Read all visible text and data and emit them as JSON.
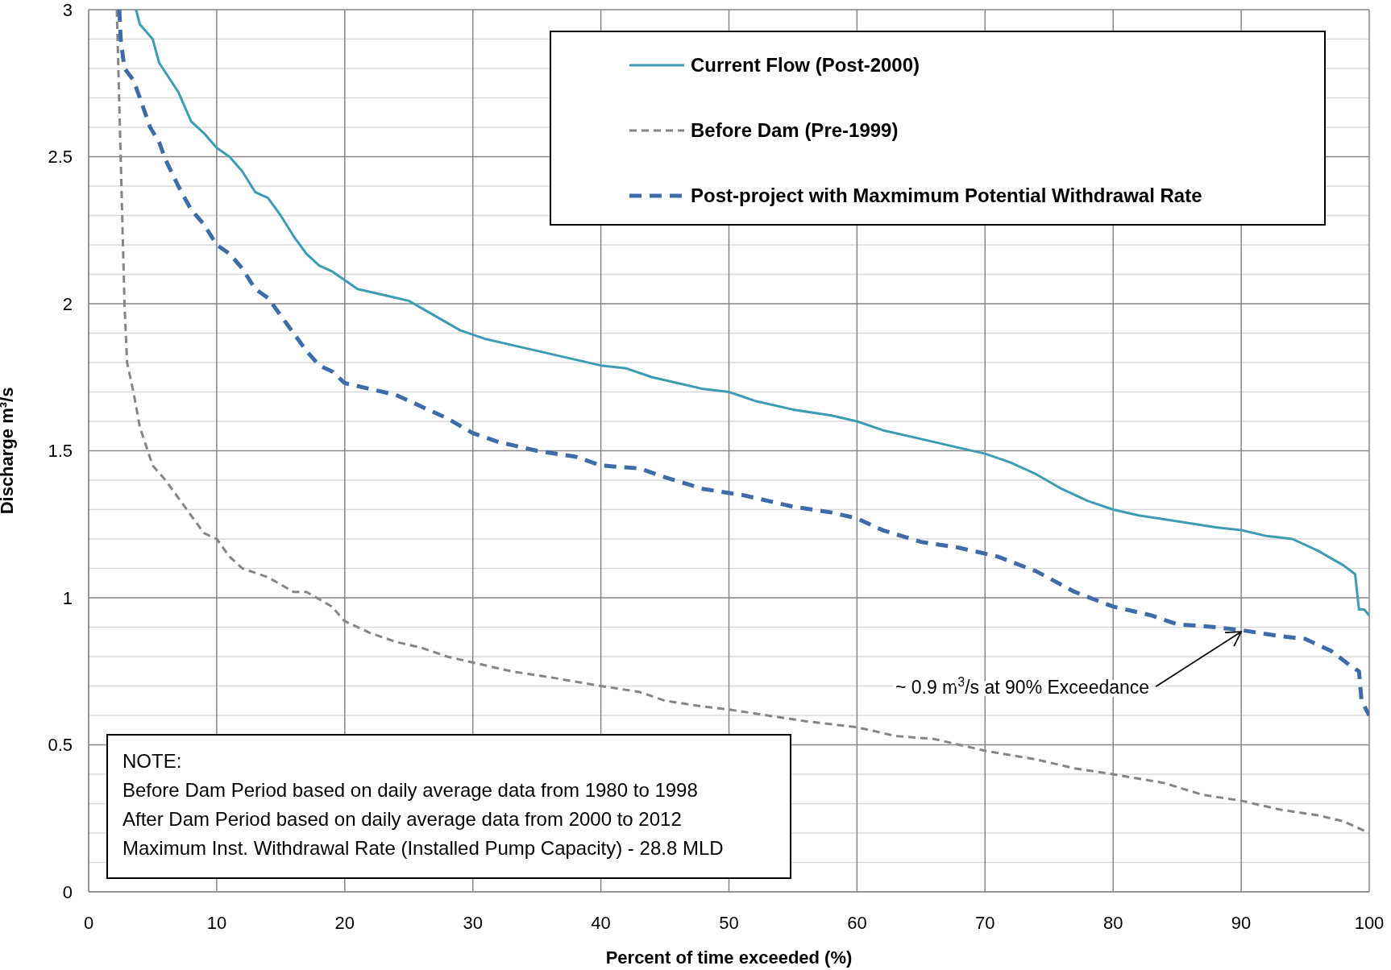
{
  "chart_data": {
    "type": "line",
    "xlabel": "Percent of time exceeded (%)",
    "ylabel": "Discharge m³/s",
    "xlim": [
      0,
      100
    ],
    "xticks": [
      0,
      10,
      20,
      30,
      40,
      50,
      60,
      70,
      80,
      90,
      100
    ],
    "ylim": [
      0,
      3
    ],
    "yticks": [
      0,
      {
        "value": 0.1,
        "label": null
      },
      {
        "value": 0.2,
        "label": null
      },
      {
        "value": 0.3,
        "label": null
      },
      {
        "value": 0.4,
        "label": null
      },
      0.5,
      {
        "value": 0.6,
        "label": null
      },
      {
        "value": 0.7,
        "label": null
      },
      {
        "value": 0.8,
        "label": null
      },
      {
        "value": 0.9,
        "label": null
      },
      1,
      {
        "value": 1.1,
        "label": null
      },
      {
        "value": 1.2,
        "label": null
      },
      {
        "value": 1.3,
        "label": null
      },
      {
        "value": 1.4,
        "label": null
      },
      1.5,
      {
        "value": 1.6,
        "label": null
      },
      {
        "value": 1.7,
        "label": null
      },
      {
        "value": 1.8,
        "label": null
      },
      {
        "value": 1.9,
        "label": null
      },
      2,
      {
        "value": 2.1,
        "label": null
      },
      {
        "value": 2.2,
        "label": null
      },
      {
        "value": 2.3,
        "label": null
      },
      {
        "value": 2.4,
        "label": null
      },
      2.5,
      {
        "value": 2.6,
        "label": null
      },
      {
        "value": 2.7,
        "label": null
      },
      {
        "value": 2.8,
        "label": null
      },
      {
        "value": 2.9,
        "label": null
      },
      3
    ],
    "grid": true,
    "legend": "top right",
    "marker": "none",
    "series": [
      {
        "name": "Current Flow (Post-2000)",
        "color": "#3b9cb4",
        "line_style": "solid",
        "x": [
          3.7,
          4,
          5,
          5.5,
          7,
          8,
          9,
          10,
          11,
          12,
          13,
          14,
          15,
          16,
          17,
          18,
          19,
          20,
          21,
          23,
          25,
          27,
          29,
          31,
          33,
          35,
          38,
          40,
          42,
          44,
          46,
          48,
          50,
          52,
          55,
          58,
          60,
          62,
          65,
          68,
          70,
          72,
          74,
          76,
          78,
          80,
          82,
          85,
          88,
          90,
          92,
          94,
          96,
          98,
          98.9,
          99.2,
          99.6,
          100
        ],
        "values": [
          3.0,
          2.95,
          2.9,
          2.82,
          2.72,
          2.62,
          2.58,
          2.53,
          2.5,
          2.45,
          2.38,
          2.36,
          2.3,
          2.23,
          2.17,
          2.13,
          2.11,
          2.08,
          2.05,
          2.03,
          2.01,
          1.96,
          1.91,
          1.88,
          1.86,
          1.84,
          1.81,
          1.79,
          1.78,
          1.75,
          1.73,
          1.71,
          1.7,
          1.67,
          1.64,
          1.62,
          1.6,
          1.57,
          1.54,
          1.51,
          1.49,
          1.46,
          1.42,
          1.37,
          1.33,
          1.3,
          1.28,
          1.26,
          1.24,
          1.23,
          1.21,
          1.2,
          1.16,
          1.11,
          1.08,
          0.96,
          0.96,
          0.94
        ]
      },
      {
        "name": "Before Dam (Pre-1999)",
        "color": "#858585",
        "line_style": "dashed",
        "x": [
          2.2,
          2.5,
          2.8,
          3,
          3.5,
          4,
          5,
          6,
          7,
          8,
          9,
          10,
          11,
          12,
          14,
          16,
          17,
          19,
          20,
          22,
          24,
          26,
          28,
          30,
          33,
          36,
          40,
          43,
          45,
          48,
          50,
          53,
          56,
          60,
          63,
          66,
          70,
          74,
          77,
          80,
          84,
          87,
          90,
          93,
          96,
          98,
          100
        ],
        "values": [
          3.0,
          2.5,
          2.0,
          1.8,
          1.7,
          1.58,
          1.45,
          1.4,
          1.34,
          1.28,
          1.22,
          1.2,
          1.14,
          1.1,
          1.07,
          1.02,
          1.02,
          0.97,
          0.92,
          0.88,
          0.85,
          0.83,
          0.8,
          0.78,
          0.75,
          0.73,
          0.7,
          0.68,
          0.65,
          0.63,
          0.62,
          0.6,
          0.58,
          0.56,
          0.53,
          0.52,
          0.48,
          0.45,
          0.42,
          0.4,
          0.37,
          0.33,
          0.31,
          0.28,
          0.26,
          0.24,
          0.2
        ]
      },
      {
        "name": "Post-project with Maxmimum Potential Withdrawal Rate",
        "color": "#3e6ca8",
        "line_style": "dashed",
        "x": [
          2.4,
          2.5,
          2.8,
          3.5,
          4,
          4.8,
          5.5,
          6,
          7,
          8,
          9,
          10,
          11,
          12,
          13,
          14,
          15,
          16,
          17,
          18,
          19,
          20,
          22,
          24,
          26,
          28,
          30,
          32,
          35,
          38,
          40,
          43,
          45,
          48,
          51,
          55,
          58,
          60,
          62,
          65,
          68,
          71,
          74,
          77,
          80,
          83,
          85,
          88,
          90,
          93,
          95,
          97,
          98.5,
          99.2,
          99.4,
          100
        ],
        "values": [
          3.0,
          2.9,
          2.8,
          2.76,
          2.7,
          2.6,
          2.55,
          2.49,
          2.4,
          2.32,
          2.27,
          2.2,
          2.17,
          2.12,
          2.05,
          2.02,
          1.96,
          1.9,
          1.84,
          1.79,
          1.77,
          1.73,
          1.71,
          1.69,
          1.65,
          1.61,
          1.56,
          1.53,
          1.5,
          1.48,
          1.45,
          1.44,
          1.41,
          1.37,
          1.35,
          1.31,
          1.29,
          1.27,
          1.23,
          1.19,
          1.17,
          1.14,
          1.09,
          1.02,
          0.97,
          0.94,
          0.91,
          0.9,
          0.89,
          0.87,
          0.86,
          0.82,
          0.77,
          0.75,
          0.65,
          0.6
        ]
      }
    ],
    "annotations": [
      {
        "text": "~ 0.9 m$^{3}$/s at 90% Exceedance",
        "x": 90,
        "y": 0.89
      },
      "NOTE:",
      "Before Dam Period based on daily average data from 1980 to 1998",
      "After Dam Period based on daily average data from 2000 to 2012",
      "Maximum Inst. Withdrawal Rate (Installed Pump Capacity) - 28.8 MLD"
    ]
  }
}
